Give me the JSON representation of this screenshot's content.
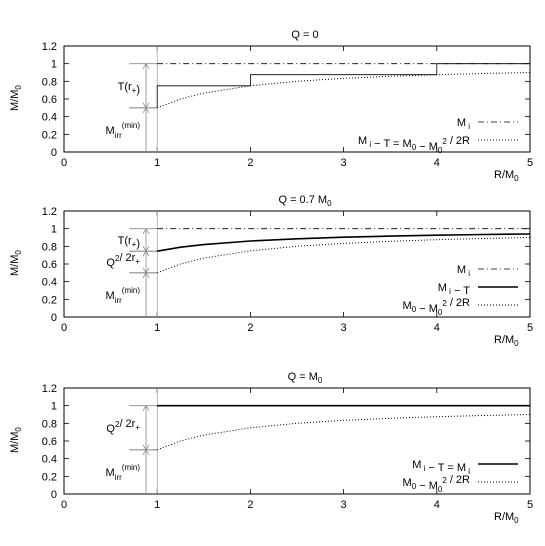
{
  "chart_data": [
    {
      "type": "line",
      "title": "Q = 0",
      "xlabel": "R/M0",
      "ylabel": "M/M0",
      "xlim": [
        0,
        5
      ],
      "ylim": [
        0,
        1.2
      ],
      "xticks": [
        "0",
        "1",
        "2",
        "3",
        "4",
        "5"
      ],
      "yticks": [
        "0",
        "0.2",
        "0.4",
        "0.6",
        "0.8",
        "1",
        "1.2"
      ],
      "legend_position": "bottom-right",
      "series": [
        {
          "name": "M i",
          "style": "dash-dot",
          "x": [
            1,
            5
          ],
          "y": [
            1.0,
            1.0
          ]
        },
        {
          "name": "M i − T = M0 − M0² / 2R",
          "style": "dotted",
          "x": [
            1,
            1.25,
            1.5,
            2,
            2.5,
            3,
            3.5,
            4,
            4.5,
            5
          ],
          "y": [
            0.5,
            0.6,
            0.667,
            0.75,
            0.8,
            0.833,
            0.857,
            0.875,
            0.889,
            0.9
          ]
        },
        {
          "name": "",
          "style": "solid-thin",
          "x": [
            1,
            1,
            2,
            2,
            4,
            4,
            5
          ],
          "y": [
            0.5,
            0.75,
            0.75,
            0.875,
            0.875,
            1.0,
            1.0
          ]
        }
      ],
      "annotations": [
        {
          "label": "T(r+)",
          "y_from": 0.5,
          "y_to": 1.0
        },
        {
          "label": "Mirr(min)",
          "y_from": 0.0,
          "y_to": 0.5
        }
      ]
    },
    {
      "type": "line",
      "title": "Q = 0.7 M0",
      "xlabel": "R/M0",
      "ylabel": "M/M0",
      "xlim": [
        0,
        5
      ],
      "ylim": [
        0,
        1.2
      ],
      "xticks": [
        "0",
        "1",
        "2",
        "3",
        "4",
        "5"
      ],
      "yticks": [
        "0",
        "0.2",
        "0.4",
        "0.6",
        "0.8",
        "1",
        "1.2"
      ],
      "legend_position": "bottom-right",
      "series": [
        {
          "name": "M i",
          "style": "dash-dot",
          "x": [
            1,
            5
          ],
          "y": [
            1.0,
            1.0
          ]
        },
        {
          "name": "M i − T",
          "style": "solid-thick",
          "x": [
            1,
            1.25,
            1.5,
            2,
            2.5,
            3,
            3.5,
            4,
            4.5,
            5
          ],
          "y": [
            0.745,
            0.79,
            0.82,
            0.86,
            0.885,
            0.903,
            0.916,
            0.926,
            0.934,
            0.94
          ]
        },
        {
          "name": "M0 − M0² / 2R",
          "style": "dotted",
          "x": [
            1,
            1.25,
            1.5,
            2,
            2.5,
            3,
            3.5,
            4,
            4.5,
            5
          ],
          "y": [
            0.5,
            0.6,
            0.667,
            0.75,
            0.8,
            0.833,
            0.857,
            0.875,
            0.889,
            0.9
          ]
        }
      ],
      "annotations": [
        {
          "label": "T(r+)",
          "y_from": 0.745,
          "y_to": 1.0
        },
        {
          "label": "Q2/ 2r+",
          "y_from": 0.5,
          "y_to": 0.745
        },
        {
          "label": "Mirr(min)",
          "y_from": 0.0,
          "y_to": 0.5
        }
      ]
    },
    {
      "type": "line",
      "title": "Q = M0",
      "xlabel": "R/M0",
      "ylabel": "M/M0",
      "xlim": [
        0,
        5
      ],
      "ylim": [
        0,
        1.2
      ],
      "xticks": [
        "0",
        "1",
        "2",
        "3",
        "4",
        "5"
      ],
      "yticks": [
        "0",
        "0.2",
        "0.4",
        "0.6",
        "0.8",
        "1",
        "1.2"
      ],
      "legend_position": "bottom-right",
      "series": [
        {
          "name": "M i − T = M i",
          "style": "solid-thick",
          "x": [
            1,
            5
          ],
          "y": [
            1.0,
            1.0
          ]
        },
        {
          "name": "M0 − M0² / 2R",
          "style": "dotted",
          "x": [
            1,
            1.25,
            1.5,
            2,
            2.5,
            3,
            3.5,
            4,
            4.5,
            5
          ],
          "y": [
            0.5,
            0.6,
            0.667,
            0.75,
            0.8,
            0.833,
            0.857,
            0.875,
            0.889,
            0.9
          ]
        }
      ],
      "annotations": [
        {
          "label": "Q2/ 2r+",
          "y_from": 0.5,
          "y_to": 1.0
        },
        {
          "label": "Mirr(min)",
          "y_from": 0.0,
          "y_to": 0.5
        }
      ]
    }
  ]
}
